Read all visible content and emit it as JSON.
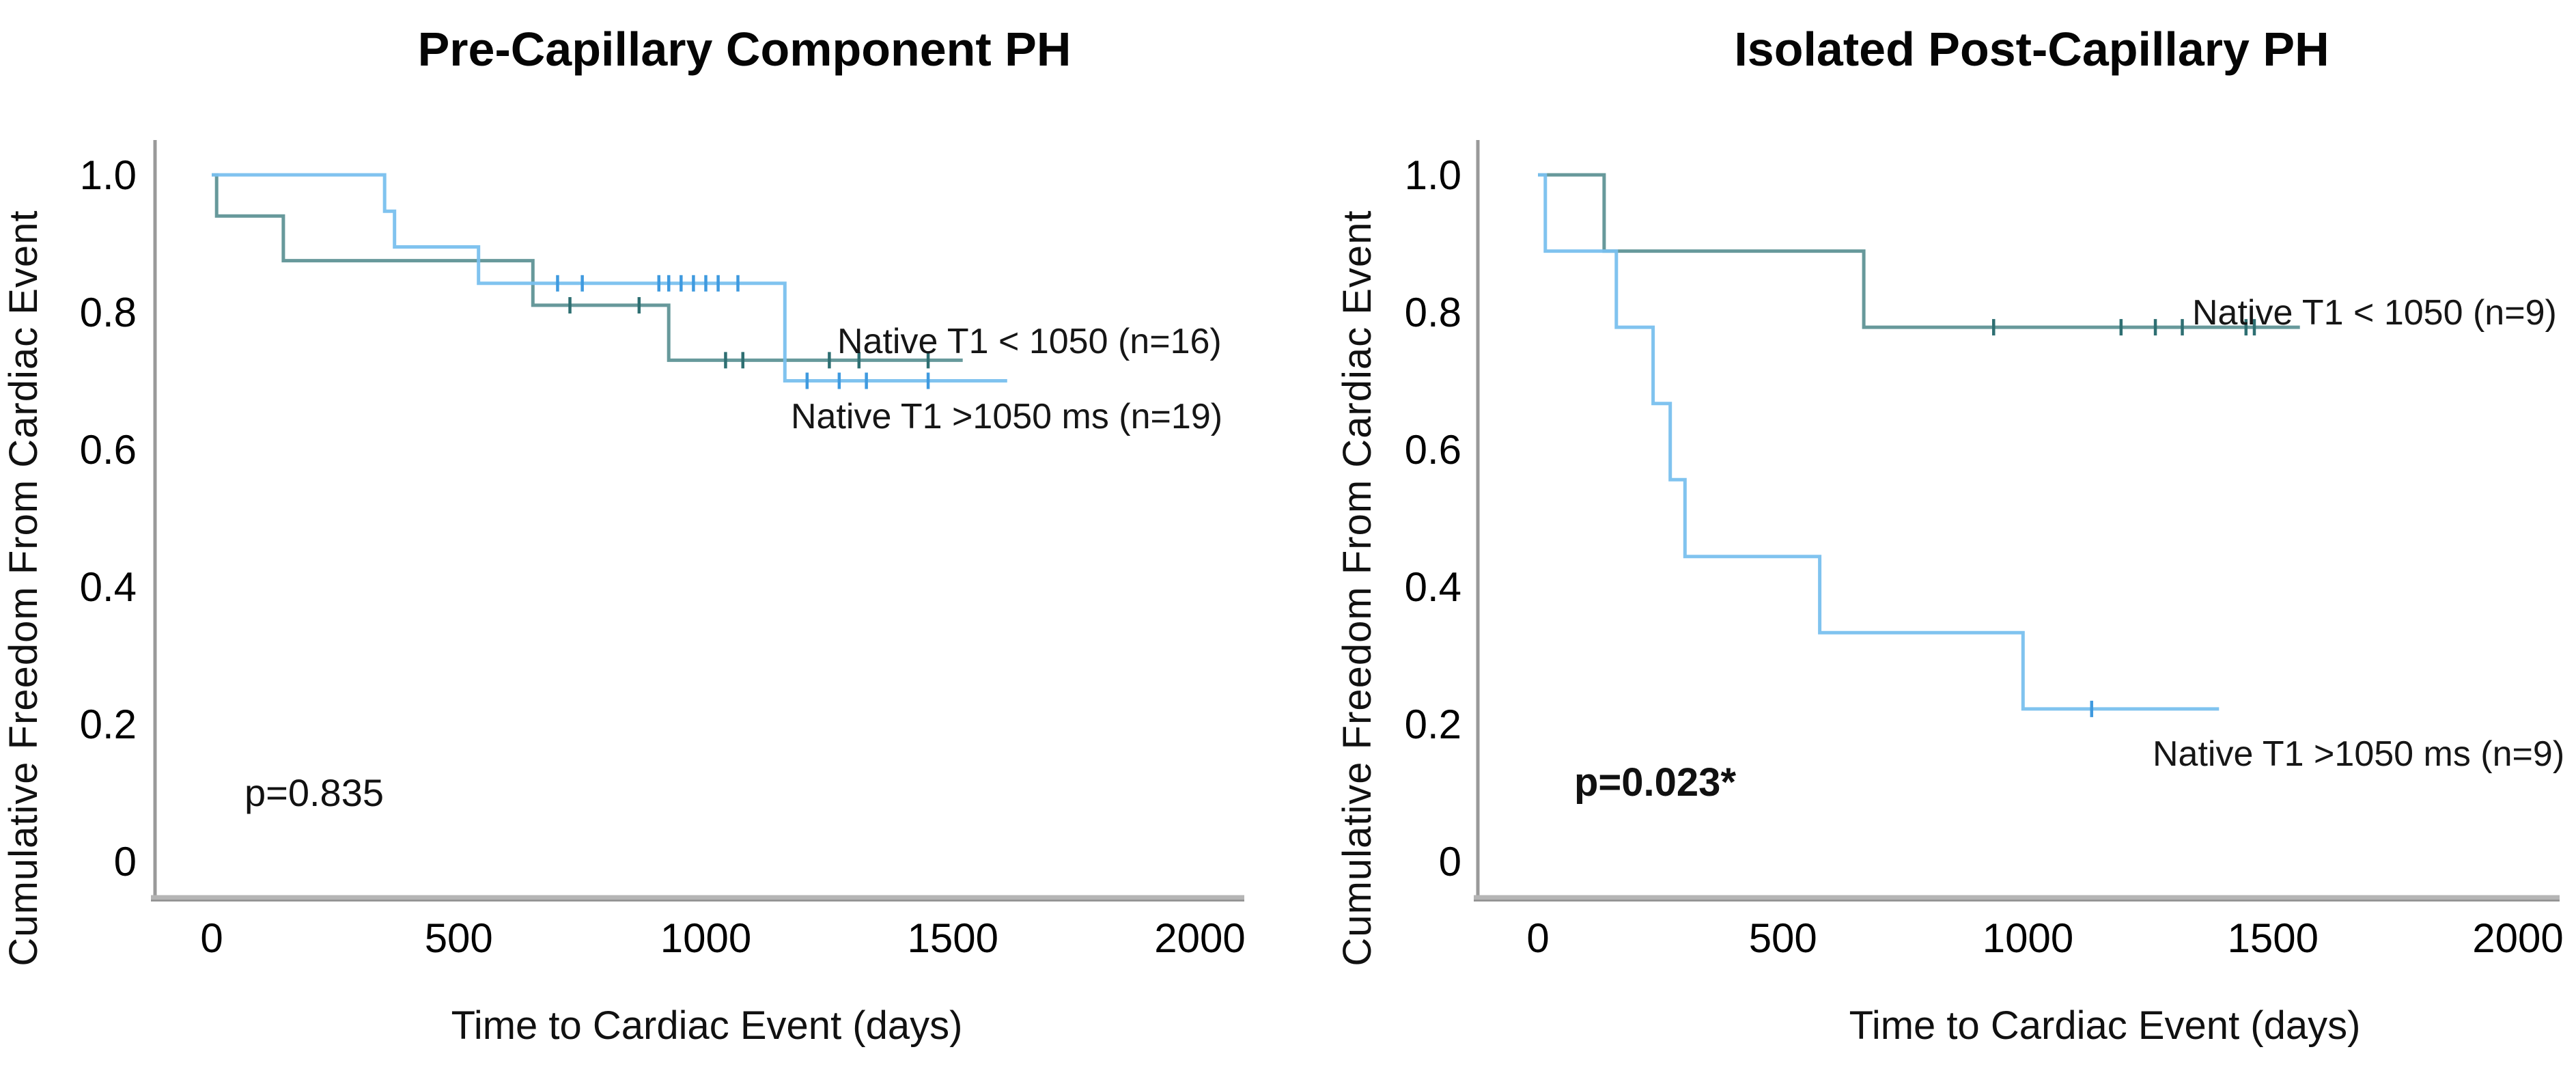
{
  "figure": {
    "background": "#ffffff",
    "axis_color": "#9a9a9a",
    "text_color": "#000000"
  },
  "chart_data": [
    {
      "type": "line",
      "subtype": "kaplan-meier-step",
      "title": "Pre-Capillary Component PH",
      "xlabel": "Time to Cardiac Event (days)",
      "ylabel": "Cumulative Freedom From Cardiac Event",
      "p_value_label": "p=0.835",
      "p_value_bold": false,
      "xlim": [
        0,
        2000
      ],
      "ylim": [
        0,
        1.0
      ],
      "grid": false,
      "legend_position": "labels-on-plot-right",
      "x_ticks": [
        0,
        500,
        1000,
        1500,
        2000
      ],
      "y_ticks": [
        "1.0",
        "0.8",
        "0.6",
        "0.4",
        "0.2",
        "0"
      ],
      "y_tick_values": [
        1.0,
        0.8,
        0.6,
        0.4,
        0.2,
        0
      ],
      "series": [
        {
          "name": "Native T1 < 1050 (n=16)",
          "color": "#5F9496",
          "censor_color": "#2E6F72",
          "steps": [
            [
              0,
              1.0
            ],
            [
              10,
              1.0
            ],
            [
              10,
              0.94
            ],
            [
              145,
              0.94
            ],
            [
              145,
              0.875
            ],
            [
              650,
              0.875
            ],
            [
              650,
              0.81
            ],
            [
              925,
              0.81
            ],
            [
              925,
              0.73
            ],
            [
              1520,
              0.73
            ]
          ],
          "censors": [
            [
              725,
              0.81
            ],
            [
              865,
              0.81
            ],
            [
              1040,
              0.73
            ],
            [
              1075,
              0.73
            ],
            [
              1250,
              0.73
            ],
            [
              1310,
              0.73
            ],
            [
              1450,
              0.73
            ]
          ]
        },
        {
          "name": "Native T1  >1050 ms (n=19)",
          "color": "#79C0EE",
          "censor_color": "#3F9ADF",
          "steps": [
            [
              0,
              1.0
            ],
            [
              350,
              1.0
            ],
            [
              350,
              0.947
            ],
            [
              370,
              0.947
            ],
            [
              370,
              0.895
            ],
            [
              540,
              0.895
            ],
            [
              540,
              0.842
            ],
            [
              1160,
              0.842
            ],
            [
              1160,
              0.7
            ],
            [
              1610,
              0.7
            ]
          ],
          "censors": [
            [
              700,
              0.842
            ],
            [
              750,
              0.842
            ],
            [
              905,
              0.842
            ],
            [
              925,
              0.842
            ],
            [
              950,
              0.842
            ],
            [
              975,
              0.842
            ],
            [
              1000,
              0.842
            ],
            [
              1025,
              0.842
            ],
            [
              1065,
              0.842
            ],
            [
              1205,
              0.7
            ],
            [
              1270,
              0.7
            ],
            [
              1325,
              0.7
            ],
            [
              1450,
              0.7
            ]
          ]
        }
      ]
    },
    {
      "type": "line",
      "subtype": "kaplan-meier-step",
      "title": "Isolated Post-Capillary PH",
      "xlabel": "Time to Cardiac Event (days)",
      "ylabel": "Cumulative Freedom From Cardiac Event",
      "p_value_label": "p=0.023*",
      "p_value_bold": true,
      "xlim": [
        0,
        2000
      ],
      "ylim": [
        0,
        1.0
      ],
      "grid": false,
      "legend_position": "labels-on-plot-right",
      "x_ticks": [
        0,
        500,
        1000,
        1500,
        2000
      ],
      "y_ticks": [
        "1.0",
        "0.8",
        "0.6",
        "0.4",
        "0.2",
        "0"
      ],
      "y_tick_values": [
        1.0,
        0.8,
        0.6,
        0.4,
        0.2,
        0
      ],
      "series": [
        {
          "name": "Native T1 < 1050 (n=9)",
          "color": "#5F9496",
          "censor_color": "#2E6F72",
          "steps": [
            [
              0,
              1.0
            ],
            [
              135,
              1.0
            ],
            [
              135,
              0.889
            ],
            [
              665,
              0.889
            ],
            [
              665,
              0.778
            ],
            [
              1555,
              0.778
            ]
          ],
          "censors": [
            [
              930,
              0.778
            ],
            [
              1190,
              0.778
            ],
            [
              1260,
              0.778
            ],
            [
              1315,
              0.778
            ],
            [
              1445,
              0.778
            ],
            [
              1462,
              0.778
            ]
          ]
        },
        {
          "name": "Native T1  >1050 ms (n=9)",
          "color": "#79C0EE",
          "censor_color": "#3F9ADF",
          "steps": [
            [
              0,
              1.0
            ],
            [
              15,
              1.0
            ],
            [
              15,
              0.889
            ],
            [
              160,
              0.889
            ],
            [
              160,
              0.778
            ],
            [
              235,
              0.778
            ],
            [
              235,
              0.667
            ],
            [
              270,
              0.667
            ],
            [
              270,
              0.556
            ],
            [
              300,
              0.556
            ],
            [
              300,
              0.444
            ],
            [
              575,
              0.444
            ],
            [
              575,
              0.333
            ],
            [
              990,
              0.333
            ],
            [
              990,
              0.222
            ],
            [
              1390,
              0.222
            ]
          ],
          "censors": [
            [
              1130,
              0.222
            ]
          ]
        }
      ]
    }
  ]
}
